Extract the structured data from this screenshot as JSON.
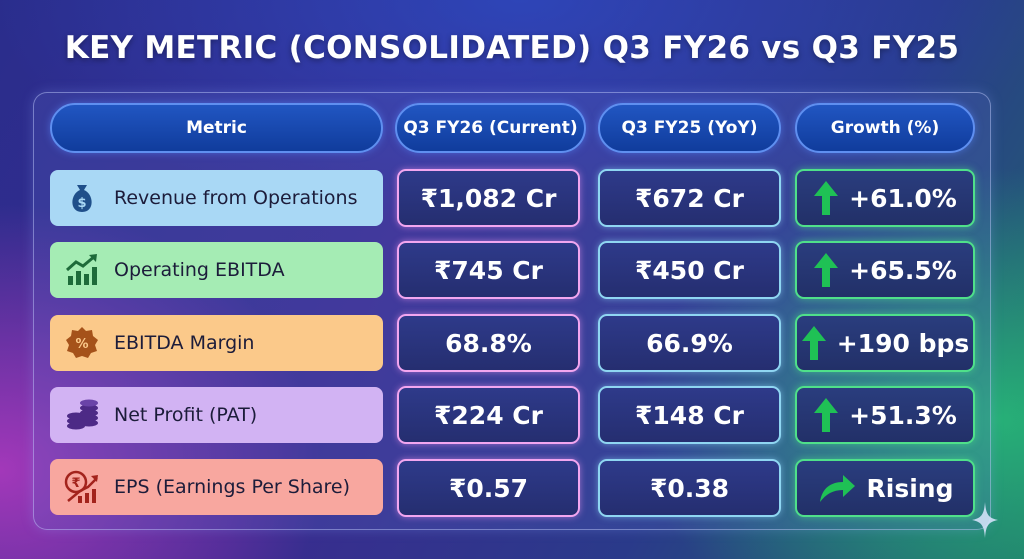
{
  "title": "KEY METRIC (CONSOLIDATED) Q3 FY26 vs Q3 FY25",
  "headers": {
    "metric": "Metric",
    "current": "Q3 FY26 (Current)",
    "previous": "Q3 FY25 (YoY)",
    "growth": "Growth (%)"
  },
  "rows": [
    {
      "metric": "Revenue from Operations",
      "icon": "money-bag-icon",
      "color": "#a9d8f5",
      "current": "₹1,082 Cr",
      "previous": "₹672 Cr",
      "growth": "+61.0%",
      "trend": "up-arrow-icon"
    },
    {
      "metric": "Operating EBITDA",
      "icon": "growth-chart-icon",
      "color": "#a5ecb4",
      "current": "₹745 Cr",
      "previous": "₹450 Cr",
      "growth": "+65.5%",
      "trend": "up-arrow-icon"
    },
    {
      "metric": "EBITDA Margin",
      "icon": "percent-badge-icon",
      "color": "#fbc98a",
      "current": "68.8%",
      "previous": "66.9%",
      "growth": "+190 bps",
      "trend": "up-arrow-icon"
    },
    {
      "metric": "Net Profit (PAT)",
      "icon": "coin-stack-icon",
      "color": "#d2b3f3",
      "current": "₹224 Cr",
      "previous": "₹148 Cr",
      "growth": "+51.3%",
      "trend": "up-arrow-icon"
    },
    {
      "metric": "EPS (Earnings Per Share)",
      "icon": "rupee-trend-icon",
      "color": "#f8a79f",
      "current": "₹0.57",
      "previous": "₹0.38",
      "growth": "Rising",
      "trend": "curved-arrow-icon"
    }
  ],
  "colors": {
    "current_border": "#f2a6f0",
    "previous_border": "#8fd6f2",
    "growth_border": "#4fe08a",
    "arrow": "#1fc155",
    "header_fill": "#103c9c"
  }
}
